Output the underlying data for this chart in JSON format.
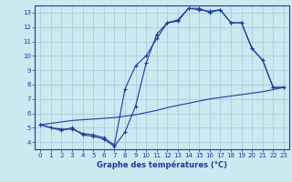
{
  "title": "Graphe des températures (°C)",
  "bg_color": "#cce8f0",
  "grid_color": "#aaccd8",
  "line_color": "#1a3a9e",
  "xlim": [
    -0.5,
    23.5
  ],
  "ylim": [
    3.5,
    13.5
  ],
  "xticks": [
    0,
    1,
    2,
    3,
    4,
    5,
    6,
    7,
    8,
    9,
    10,
    11,
    12,
    13,
    14,
    15,
    16,
    17,
    18,
    19,
    20,
    21,
    22,
    23
  ],
  "yticks": [
    4,
    5,
    6,
    7,
    8,
    9,
    10,
    11,
    12,
    13
  ],
  "series1_x": [
    0,
    1,
    2,
    3,
    4,
    5,
    6,
    7,
    8,
    9,
    10,
    11,
    12,
    13,
    14,
    15,
    16,
    17,
    18,
    19,
    20,
    21,
    22,
    23
  ],
  "series1_y": [
    5.2,
    5.0,
    4.8,
    5.0,
    4.5,
    4.4,
    4.2,
    3.7,
    4.7,
    6.5,
    9.5,
    11.5,
    12.3,
    12.5,
    13.3,
    13.2,
    13.1,
    13.2,
    12.3,
    12.3,
    10.5,
    9.7,
    7.8,
    7.8
  ],
  "series2_x": [
    0,
    1,
    2,
    3,
    4,
    5,
    6,
    7,
    8,
    9,
    10,
    11,
    12,
    13,
    14,
    15,
    16,
    17,
    18,
    19,
    20,
    21,
    22,
    23
  ],
  "series2_y": [
    5.2,
    5.3,
    5.4,
    5.5,
    5.55,
    5.6,
    5.65,
    5.7,
    5.8,
    5.9,
    6.05,
    6.2,
    6.4,
    6.55,
    6.7,
    6.85,
    7.0,
    7.1,
    7.2,
    7.3,
    7.4,
    7.5,
    7.65,
    7.8
  ],
  "series3_x": [
    0,
    1,
    2,
    3,
    4,
    5,
    6,
    7,
    8,
    9,
    10,
    11,
    12,
    13,
    14,
    15,
    16,
    17,
    18,
    19,
    20,
    21,
    22,
    23
  ],
  "series3_y": [
    5.2,
    5.0,
    4.9,
    4.9,
    4.6,
    4.5,
    4.3,
    3.8,
    7.7,
    9.3,
    10.0,
    11.2,
    12.3,
    12.4,
    13.3,
    13.3,
    13.0,
    13.2,
    12.3,
    12.3,
    10.5,
    9.7,
    7.8,
    7.8
  ]
}
